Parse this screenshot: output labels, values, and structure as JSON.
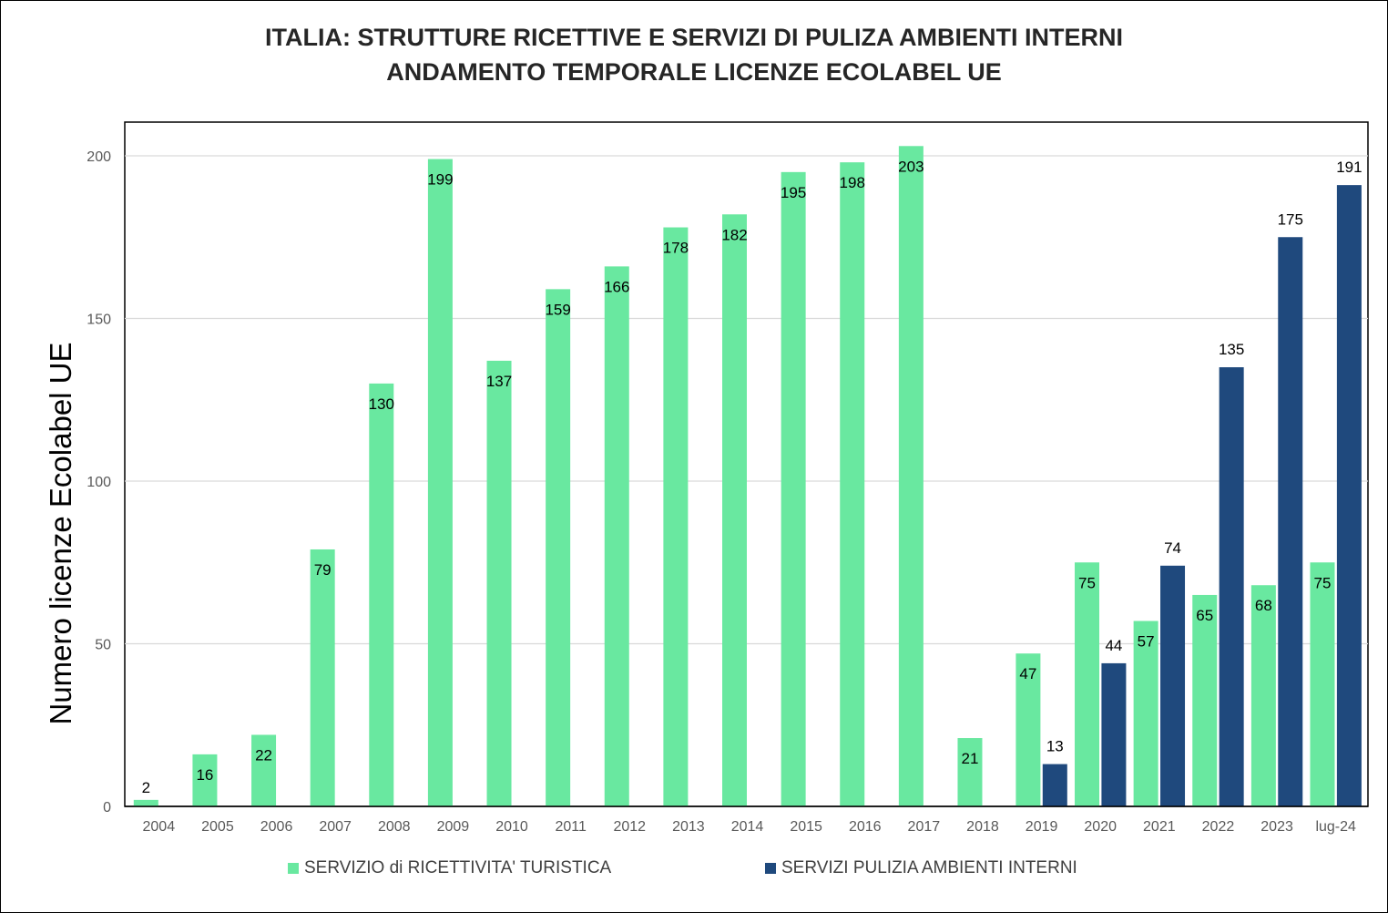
{
  "chart_data": {
    "type": "bar",
    "title": [
      "ITALIA:  STRUTTURE RICETTIVE E SERVIZI DI PULIZA AMBIENTI INTERNI",
      "ANDAMENTO TEMPORALE LICENZE ECOLABEL UE"
    ],
    "xlabel": "",
    "ylabel": "Numero licenze Ecolabel UE",
    "ylim": [
      0,
      210
    ],
    "yticks": [
      0,
      50,
      100,
      150,
      200
    ],
    "grid": true,
    "legend_position": "bottom",
    "categories": [
      "2004",
      "2005",
      "2006",
      "2007",
      "2008",
      "2009",
      "2010",
      "2011",
      "2012",
      "2013",
      "2014",
      "2015",
      "2016",
      "2017",
      "2018",
      "2019",
      "2020",
      "2021",
      "2022",
      "2023",
      "lug-24"
    ],
    "series": [
      {
        "name": "SERVIZIO di RICETTIVITA' TURISTICA",
        "color": "#69E8A0",
        "values": [
          2,
          16,
          22,
          79,
          130,
          199,
          137,
          159,
          166,
          178,
          182,
          195,
          198,
          203,
          21,
          47,
          75,
          57,
          65,
          68,
          75
        ]
      },
      {
        "name": "SERVIZI PULIZIA AMBIENTI INTERNI",
        "color": "#1F497D",
        "values": [
          null,
          null,
          null,
          null,
          null,
          null,
          null,
          null,
          null,
          null,
          null,
          null,
          null,
          null,
          null,
          13,
          44,
          74,
          135,
          175,
          191
        ]
      }
    ]
  }
}
